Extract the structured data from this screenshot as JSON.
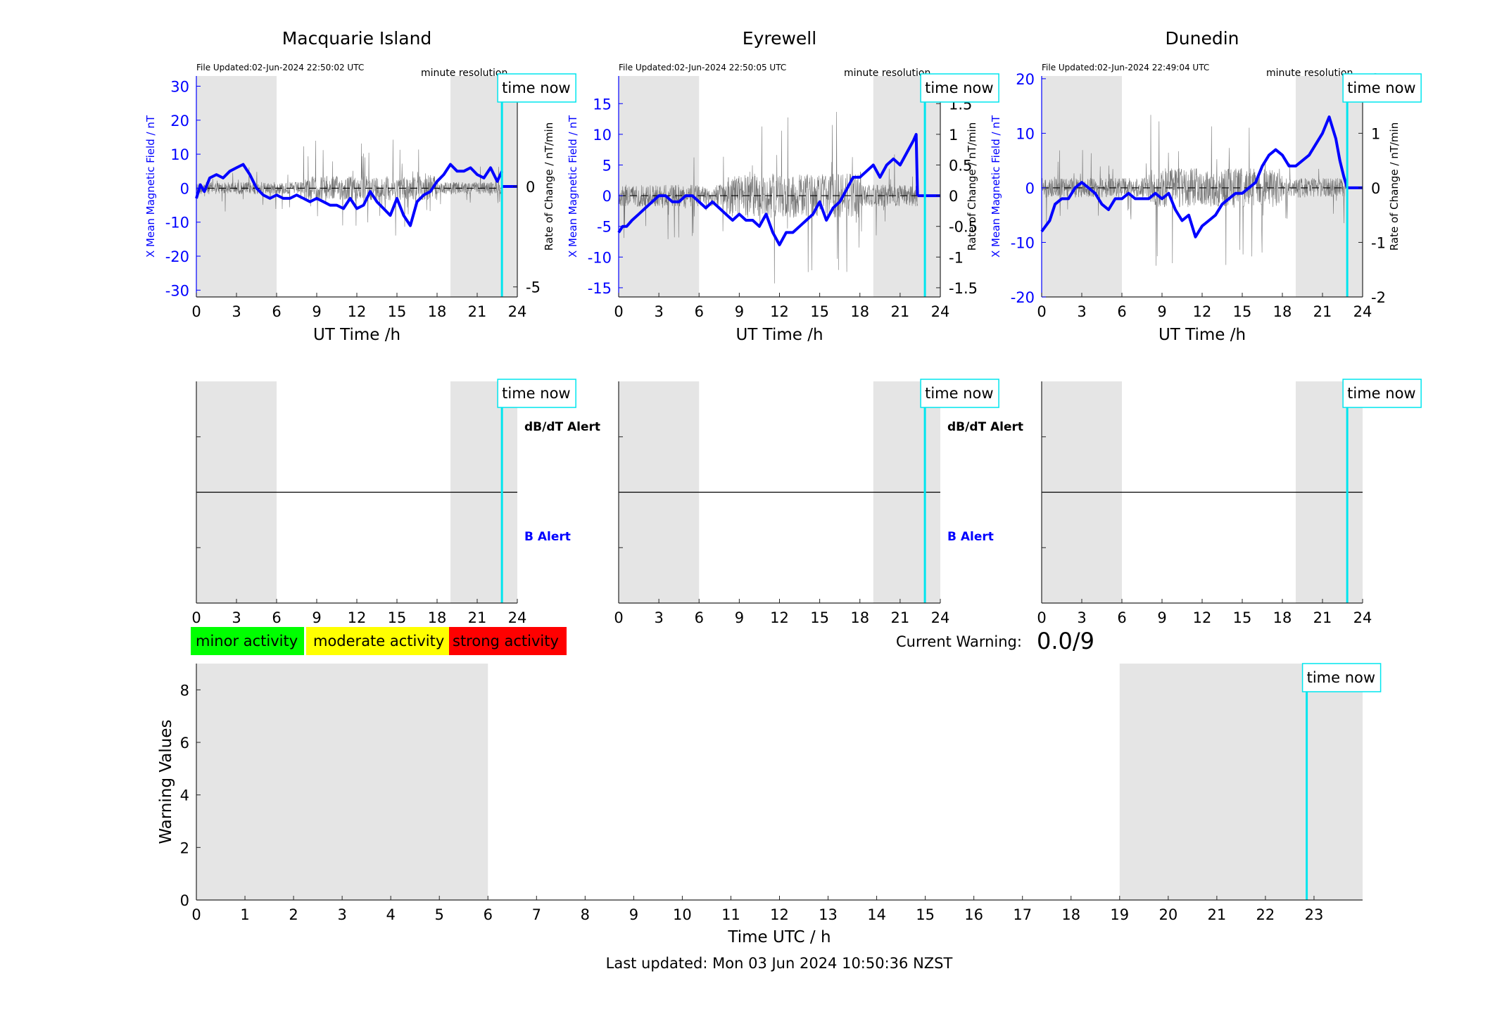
{
  "colors": {
    "night_shade": "#e5e5e5",
    "field_line": "#0000ff",
    "rate_line": "#555555",
    "time_now": "#00e5ee",
    "minor": "#00ff00",
    "moderate": "#ffff00",
    "strong": "#ff0000",
    "axis": "#262626"
  },
  "stations": [
    {
      "title": "Macquarie Island",
      "file_updated": "File Updated:02-Jun-2024 22:50:02 UTC",
      "resolution": "minute resolution",
      "time_now_label": "time now",
      "ylabel_left": "X Mean Magnetic Field / nT",
      "ylabel_right": "Rate of Change / nT/min",
      "yticks_left": [
        "30",
        "20",
        "10",
        "0",
        "-10",
        "-20",
        "-30"
      ],
      "yticks_right": [
        "5",
        "0",
        "-5"
      ]
    },
    {
      "title": "Eyrewell",
      "file_updated": "File Updated:02-Jun-2024 22:50:05 UTC",
      "resolution": "minute resolution",
      "time_now_label": "time now",
      "ylabel_left": "X Mean Magnetic Field / nT",
      "ylabel_right": "Rate of Change / nT/min",
      "yticks_left": [
        "15",
        "10",
        "5",
        "0",
        "-5",
        "-10",
        "-15"
      ],
      "yticks_right": [
        "1.5",
        "1",
        "0.5",
        "0",
        "-0.5",
        "-1",
        "-1.5"
      ]
    },
    {
      "title": "Dunedin",
      "file_updated": "File Updated:02-Jun-2024 22:49:04 UTC",
      "resolution": "minute resolution",
      "time_now_label": "time now",
      "ylabel_left": "X Mean Magnetic Field / nT",
      "ylabel_right": "Rate of Change / nT/min",
      "yticks_left": [
        "20",
        "10",
        "0",
        "-10",
        "-20"
      ],
      "yticks_right": [
        "2",
        "1",
        "0",
        "-1",
        "-2"
      ]
    }
  ],
  "shared": {
    "xlabel_top": "UT Time /h",
    "xticks_top": [
      "0",
      "3",
      "6",
      "9",
      "12",
      "15",
      "18",
      "21",
      "24"
    ],
    "alert_db_label": "dB/dT Alert",
    "alert_b_label": "B Alert"
  },
  "legend": {
    "minor": "minor activity",
    "moderate": "moderate activity",
    "strong": "strong activity"
  },
  "warning": {
    "label": "Current Warning:",
    "value": "0.0/9"
  },
  "bottom": {
    "ylabel": "Warning Values",
    "xlabel": "Time UTC / h",
    "yticks": [
      "0",
      "2",
      "4",
      "6",
      "8"
    ],
    "xticks": [
      "0",
      "1",
      "2",
      "3",
      "4",
      "5",
      "6",
      "7",
      "8",
      "9",
      "10",
      "11",
      "12",
      "13",
      "14",
      "15",
      "16",
      "17",
      "18",
      "19",
      "20",
      "21",
      "22",
      "23"
    ],
    "time_now_label": "time now"
  },
  "footer": "Last updated: Mon 03 Jun 2024 10:50:36 NZST",
  "chart_data": [
    {
      "type": "line",
      "title": "Macquarie Island",
      "xlabel": "UT Time /h",
      "ylabel": "X Mean Magnetic Field / nT",
      "xlim": [
        0,
        24
      ],
      "ylim": [
        -32,
        33
      ],
      "ylim_right": [
        -5.5,
        5.5
      ],
      "night_shading": [
        [
          0,
          6
        ],
        [
          19,
          24
        ]
      ],
      "time_now": 22.85,
      "series": [
        {
          "axis": "left",
          "x": [
            0,
            0.3,
            0.6,
            1,
            1.5,
            2,
            2.5,
            3,
            3.5,
            4,
            4.5,
            5,
            5.5,
            6,
            6.5,
            7,
            7.5,
            8,
            8.5,
            9,
            9.5,
            10,
            10.5,
            11,
            11.5,
            12,
            12.5,
            13,
            13.5,
            14,
            14.5,
            15,
            15.5,
            16,
            16.5,
            17,
            17.5,
            18,
            18.5,
            19,
            19.5,
            20,
            20.5,
            21,
            21.5,
            22,
            22.5,
            22.85
          ],
          "values": [
            -3,
            1,
            -1,
            3,
            4,
            3,
            5,
            6,
            7,
            4,
            0,
            -2,
            -3,
            -2,
            -3,
            -3,
            -2,
            -3,
            -4,
            -3,
            -4,
            -5,
            -5,
            -6,
            -3,
            -6,
            -5,
            -1,
            -4,
            -6,
            -8,
            -3,
            -8,
            -11,
            -4,
            -2,
            -1,
            2,
            4,
            7,
            5,
            5,
            6,
            4,
            3,
            6,
            2,
            5
          ]
        },
        {
          "axis": "right",
          "x": [
            22.85,
            24
          ],
          "values": [
            0,
            0
          ]
        }
      ]
    },
    {
      "type": "line",
      "title": "Eyrewell",
      "xlabel": "UT Time /h",
      "ylabel": "X Mean Magnetic Field / nT",
      "xlim": [
        0,
        24
      ],
      "ylim": [
        -16.5,
        19.5
      ],
      "ylim_right": [
        -1.65,
        1.95
      ],
      "night_shading": [
        [
          0,
          6
        ],
        [
          19,
          24
        ]
      ],
      "time_now": 22.85,
      "series": [
        {
          "axis": "left",
          "x": [
            0,
            0.3,
            0.6,
            1,
            1.5,
            2,
            2.5,
            3,
            3.5,
            4,
            4.5,
            5,
            5.5,
            6,
            6.5,
            7,
            7.5,
            8,
            8.5,
            9,
            9.5,
            10,
            10.5,
            11,
            11.5,
            12,
            12.5,
            13,
            13.5,
            14,
            14.5,
            15,
            15.5,
            16,
            16.5,
            17,
            17.5,
            18,
            18.5,
            19,
            19.5,
            20,
            20.5,
            21,
            21.5,
            22,
            22.2,
            22.3
          ],
          "values": [
            -6,
            -5,
            -5,
            -4,
            -3,
            -2,
            -1,
            0,
            0,
            -1,
            -1,
            0,
            0,
            -1,
            -2,
            -1,
            -2,
            -3,
            -4,
            -3,
            -4,
            -4,
            -5,
            -3,
            -6,
            -8,
            -6,
            -6,
            -5,
            -4,
            -3,
            -1,
            -4,
            -2,
            -1,
            1,
            3,
            3,
            4,
            5,
            3,
            5,
            6,
            5,
            7,
            9,
            10,
            0
          ]
        },
        {
          "axis": "right",
          "x": [
            22.3,
            24
          ],
          "values": [
            0,
            0
          ]
        }
      ]
    },
    {
      "type": "line",
      "title": "Dunedin",
      "xlabel": "UT Time /h",
      "ylabel": "X Mean Magnetic Field / nT",
      "xlim": [
        0,
        24
      ],
      "ylim": [
        -20,
        20.5
      ],
      "ylim_right": [
        -2,
        2.05
      ],
      "night_shading": [
        [
          0,
          6
        ],
        [
          19,
          24
        ]
      ],
      "time_now": 22.85,
      "series": [
        {
          "axis": "left",
          "x": [
            0,
            0.3,
            0.6,
            1,
            1.5,
            2,
            2.5,
            3,
            3.5,
            4,
            4.5,
            5,
            5.5,
            6,
            6.5,
            7,
            7.5,
            8,
            8.5,
            9,
            9.5,
            10,
            10.5,
            11,
            11.5,
            12,
            12.5,
            13,
            13.5,
            14,
            14.5,
            15,
            15.5,
            16,
            16.5,
            17,
            17.5,
            18,
            18.5,
            19,
            19.5,
            20,
            20.5,
            21,
            21.5,
            22,
            22.3,
            22.6,
            22.85
          ],
          "values": [
            -8,
            -7,
            -6,
            -3,
            -2,
            -2,
            0,
            1,
            0,
            -1,
            -3,
            -4,
            -2,
            -2,
            -1,
            -2,
            -2,
            -2,
            -1,
            -2,
            -1,
            -4,
            -6,
            -5,
            -9,
            -7,
            -6,
            -5,
            -3,
            -2,
            -1,
            -1,
            0,
            1,
            4,
            6,
            7,
            6,
            4,
            4,
            5,
            6,
            8,
            10,
            13,
            9,
            5,
            2,
            0
          ]
        },
        {
          "axis": "right",
          "x": [
            22.85,
            24
          ],
          "values": [
            0,
            0
          ]
        }
      ]
    },
    {
      "type": "line",
      "title": "",
      "xlabel": "Time UTC / h",
      "ylabel": "Warning Values",
      "xlim": [
        0,
        24
      ],
      "ylim": [
        0,
        9
      ],
      "night_shading": [
        [
          0,
          6
        ],
        [
          19,
          24
        ]
      ],
      "time_now": 22.85,
      "series": []
    }
  ]
}
